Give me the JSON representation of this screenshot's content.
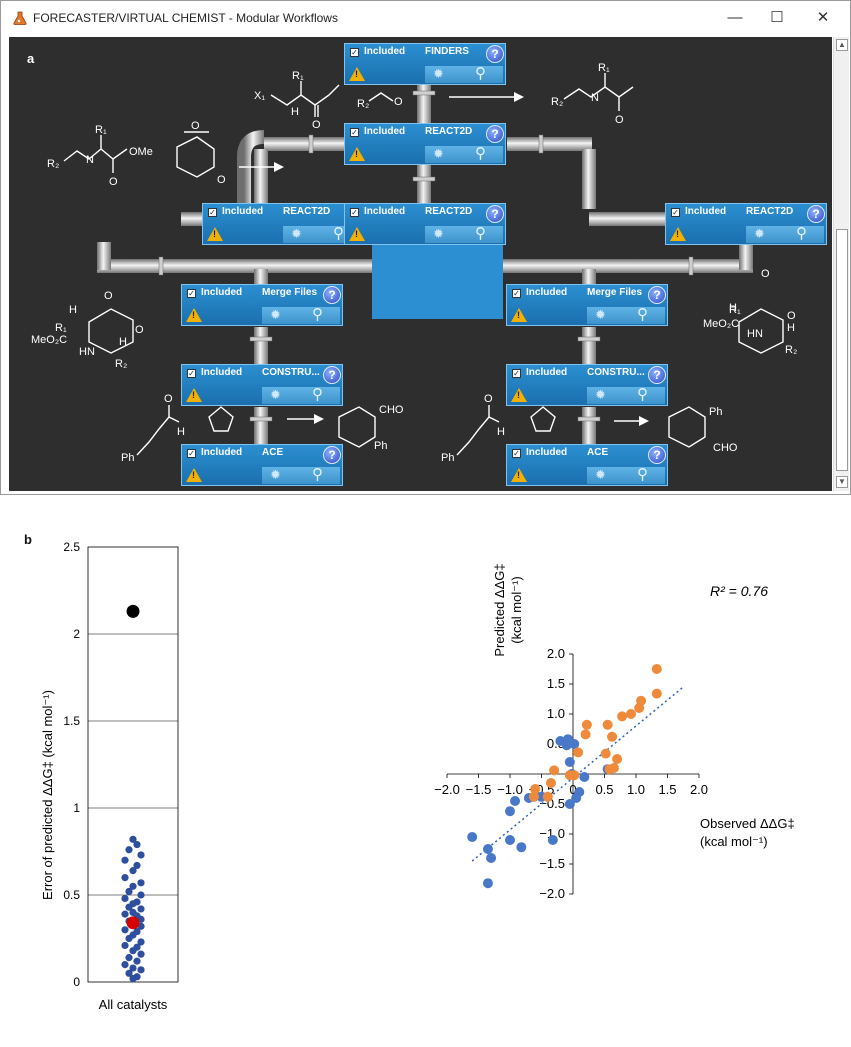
{
  "window": {
    "title": "FORECASTER/VIRTUAL CHEMIST - Modular Workflows",
    "minimize": "—",
    "maximize": "☐",
    "close": "✕",
    "icon": "flask-icon"
  },
  "panel_a": {
    "label": "a",
    "nodes": [
      {
        "id": "finders",
        "included": "Included",
        "name": "FINDERS"
      },
      {
        "id": "react2d-top",
        "included": "Included",
        "name": "REACT2D"
      },
      {
        "id": "react2d-left",
        "included": "Included",
        "name": "REACT2D"
      },
      {
        "id": "react2d-center",
        "included": "Included",
        "name": "REACT2D"
      },
      {
        "id": "react2d-right",
        "included": "Included",
        "name": "REACT2D"
      },
      {
        "id": "merge-left",
        "included": "Included",
        "name": "Merge Files"
      },
      {
        "id": "merge-right",
        "included": "Included",
        "name": "Merge Files"
      },
      {
        "id": "construct-left",
        "included": "Included",
        "name": "CONSTRU..."
      },
      {
        "id": "construct-right",
        "included": "Included",
        "name": "CONSTRU..."
      },
      {
        "id": "ace-left",
        "included": "Included",
        "name": "ACE"
      },
      {
        "id": "ace-right",
        "included": "Included",
        "name": "ACE"
      }
    ],
    "help_glyph": "?",
    "warn_glyph": "!",
    "check_glyph": "✓",
    "chem_labels": {
      "x1": "X₁",
      "r1": "R₁",
      "r2": "R₂",
      "h": "H",
      "o": "O",
      "n": "N",
      "hn": "HN",
      "ome": "OMe",
      "meo2c": "MeO₂C",
      "cho": "CHO",
      "ph": "Ph"
    }
  },
  "panel_b": {
    "label": "b",
    "left_chart": {
      "ylabel": "Error of predicted ΔΔG‡ (kcal mol⁻¹)",
      "xlabel": "All catalysts"
    },
    "right_chart": {
      "xlabel_line1": "Observed ΔΔG‡",
      "xlabel_line2": "(kcal mol⁻¹)",
      "ylabel_line1": "Predicted ΔΔG‡",
      "ylabel_line2": "(kcal mol⁻¹)",
      "r2_label": "R² = 0.76"
    }
  },
  "chart_data": [
    {
      "type": "scatter",
      "title": "",
      "xlabel": "All catalysts",
      "ylabel": "Error of predicted ΔΔG‡ (kcal mol⁻¹)",
      "ylim": [
        0,
        2.5
      ],
      "yticks": [
        0,
        0.5,
        1,
        1.5,
        2,
        2.5
      ],
      "grid": true,
      "series": [
        {
          "color": "#2d4f9e",
          "points": [
            [
              0.0,
              0.82
            ],
            [
              0.01,
              0.79
            ],
            [
              -0.01,
              0.76
            ],
            [
              0.02,
              0.73
            ],
            [
              -0.02,
              0.7
            ],
            [
              0.01,
              0.67
            ],
            [
              0.0,
              0.64
            ],
            [
              -0.02,
              0.6
            ],
            [
              0.02,
              0.57
            ],
            [
              0.0,
              0.55
            ],
            [
              -0.01,
              0.52
            ],
            [
              0.02,
              0.5
            ],
            [
              -0.02,
              0.48
            ],
            [
              0.01,
              0.46
            ],
            [
              0.0,
              0.45
            ],
            [
              -0.01,
              0.43
            ],
            [
              0.02,
              0.42
            ],
            [
              0.0,
              0.4
            ],
            [
              -0.02,
              0.39
            ],
            [
              0.01,
              0.38
            ],
            [
              0.02,
              0.36
            ],
            [
              -0.01,
              0.35
            ],
            [
              0.0,
              0.33
            ],
            [
              0.02,
              0.32
            ],
            [
              -0.02,
              0.3
            ],
            [
              0.01,
              0.29
            ],
            [
              0.0,
              0.27
            ],
            [
              -0.01,
              0.25
            ],
            [
              0.02,
              0.23
            ],
            [
              -0.02,
              0.21
            ],
            [
              0.01,
              0.2
            ],
            [
              0.0,
              0.18
            ],
            [
              0.02,
              0.16
            ],
            [
              -0.01,
              0.14
            ],
            [
              0.01,
              0.12
            ],
            [
              -0.02,
              0.1
            ],
            [
              0.0,
              0.08
            ],
            [
              0.02,
              0.07
            ],
            [
              -0.01,
              0.05
            ],
            [
              0.01,
              0.03
            ],
            [
              0.0,
              0.02
            ]
          ]
        },
        {
          "color": "#000000",
          "points": [
            [
              0.0,
              2.13
            ]
          ]
        },
        {
          "color": "#d40000",
          "points": [
            [
              0.0,
              0.34
            ]
          ]
        }
      ]
    },
    {
      "type": "scatter",
      "title": "",
      "xlabel": "Observed ΔΔG‡ (kcal mol⁻¹)",
      "ylabel": "Predicted ΔΔG‡ (kcal mol⁻¹)",
      "xlim": [
        -2.0,
        2.0
      ],
      "ylim": [
        -2.0,
        2.0
      ],
      "xticks": [
        -2.0,
        -1.5,
        -1.0,
        -0.5,
        0,
        0.5,
        1.0,
        1.5,
        2.0
      ],
      "yticks": [
        -2.0,
        -1.5,
        -1.0,
        -0.5,
        0,
        0.5,
        1.0,
        1.5,
        2.0
      ],
      "annotation": "R² = 0.76",
      "fit_line": {
        "x": [
          -1.6,
          1.75
        ],
        "y": [
          -1.45,
          1.45
        ]
      },
      "series": [
        {
          "color": "#4a78c8",
          "points": [
            [
              -1.6,
              -1.05
            ],
            [
              -1.35,
              -1.25
            ],
            [
              -1.3,
              -1.4
            ],
            [
              -1.35,
              -1.82
            ],
            [
              -1.0,
              -1.1
            ],
            [
              -1.0,
              -0.62
            ],
            [
              -0.92,
              -0.45
            ],
            [
              -0.82,
              -1.22
            ],
            [
              -0.7,
              -0.4
            ],
            [
              -0.62,
              -0.38
            ],
            [
              -0.5,
              -0.38
            ],
            [
              -0.32,
              -1.1
            ],
            [
              -0.2,
              0.55
            ],
            [
              -0.08,
              0.58
            ],
            [
              -0.1,
              0.48
            ],
            [
              -0.05,
              0.2
            ],
            [
              -0.02,
              0.0
            ],
            [
              0.02,
              0.5
            ],
            [
              -0.05,
              -0.5
            ],
            [
              0.05,
              -0.4
            ],
            [
              0.1,
              -0.3
            ],
            [
              0.18,
              -0.05
            ],
            [
              0.55,
              0.08
            ]
          ]
        },
        {
          "color": "#ee8a3a",
          "points": [
            [
              -0.6,
              -0.25
            ],
            [
              -0.62,
              -0.38
            ],
            [
              -0.4,
              -0.38
            ],
            [
              -0.35,
              -0.15
            ],
            [
              -0.3,
              0.06
            ],
            [
              -0.05,
              -0.02
            ],
            [
              0.02,
              -0.02
            ],
            [
              0.08,
              0.36
            ],
            [
              0.2,
              0.66
            ],
            [
              0.22,
              0.82
            ],
            [
              0.52,
              0.34
            ],
            [
              0.55,
              0.82
            ],
            [
              0.58,
              0.08
            ],
            [
              0.62,
              0.62
            ],
            [
              0.65,
              0.1
            ],
            [
              0.7,
              0.25
            ],
            [
              0.78,
              0.96
            ],
            [
              0.92,
              1.0
            ],
            [
              1.05,
              1.1
            ],
            [
              1.08,
              1.22
            ],
            [
              1.33,
              1.34
            ],
            [
              1.33,
              1.75
            ]
          ]
        }
      ]
    }
  ]
}
